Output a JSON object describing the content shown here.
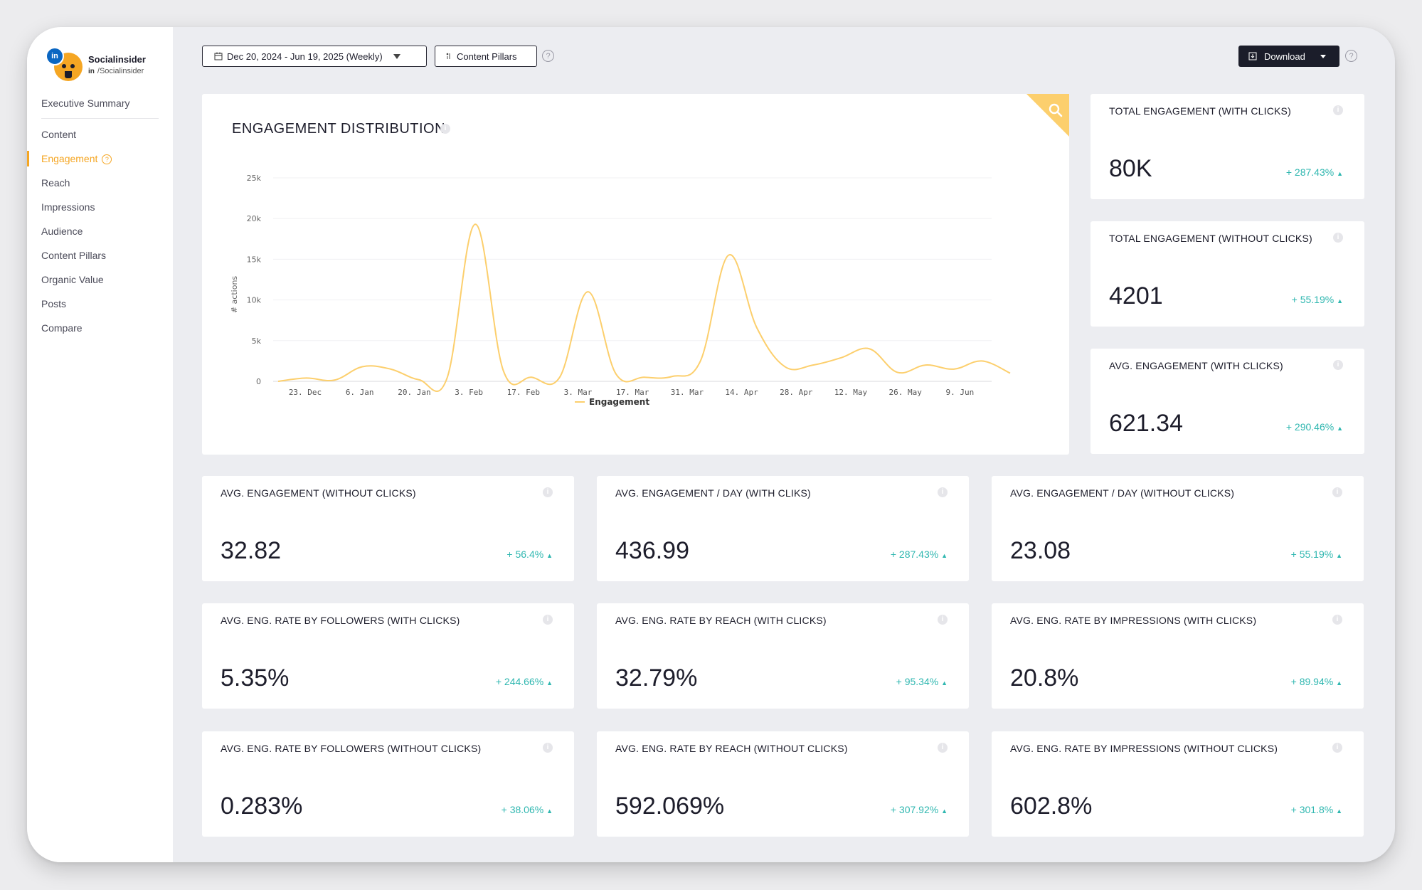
{
  "profile": {
    "name": "Socialinsider",
    "handle": "/Socialinsider",
    "network_badge": "in"
  },
  "sidebar": {
    "items": [
      {
        "label": "Executive Summary"
      },
      {
        "label": "Content"
      },
      {
        "label": "Engagement"
      },
      {
        "label": "Reach"
      },
      {
        "label": "Impressions"
      },
      {
        "label": "Audience"
      },
      {
        "label": "Content Pillars"
      },
      {
        "label": "Organic Value"
      },
      {
        "label": "Posts"
      },
      {
        "label": "Compare"
      }
    ],
    "active": "Engagement"
  },
  "toolbar": {
    "date_range": "Dec 20, 2024 - Jun 19, 2025 (Weekly)",
    "content_pillars_label": "Content Pillars",
    "download_label": "Download"
  },
  "chart_data": {
    "type": "line",
    "title": "ENGAGEMENT DISTRIBUTION",
    "ylabel": "# actions",
    "xlabel": "",
    "ylim": [
      0,
      25000
    ],
    "yticks": [
      "25k",
      "20k",
      "15k",
      "10k",
      "5k",
      "0"
    ],
    "xticks": [
      "23. Dec",
      "6. Jan",
      "20. Jan",
      "3. Feb",
      "17. Feb",
      "3. Mar",
      "17. Mar",
      "31. Mar",
      "14. Apr",
      "28. Apr",
      "12. May",
      "26. May",
      "9. Jun"
    ],
    "legend": "Engagement",
    "series": [
      {
        "name": "Engagement",
        "color": "#fccf6d",
        "values": [
          0,
          400,
          150,
          1800,
          1500,
          200,
          400,
          19300,
          1300,
          500,
          500,
          11000,
          900,
          500,
          600,
          2500,
          15500,
          6600,
          1800,
          2000,
          2900,
          4000,
          1100,
          2000,
          1500,
          2500,
          1000
        ]
      }
    ]
  },
  "metrics": [
    {
      "title": "TOTAL ENGAGEMENT (WITH CLICKS)",
      "value": "80K",
      "change": "+ 287.43%"
    },
    {
      "title": "TOTAL ENGAGEMENT (WITHOUT CLICKS)",
      "value": "4201",
      "change": "+ 55.19%"
    },
    {
      "title": "AVG. ENGAGEMENT (WITH CLICKS)",
      "value": "621.34",
      "change": "+ 290.46%"
    },
    {
      "title": "AVG. ENGAGEMENT (WITHOUT CLICKS)",
      "value": "32.82",
      "change": "+ 56.4%"
    },
    {
      "title": "AVG. ENGAGEMENT / DAY (WITH CLIKS)",
      "value": "436.99",
      "change": "+ 287.43%"
    },
    {
      "title": "AVG. ENGAGEMENT / DAY (WITHOUT CLICKS)",
      "value": "23.08",
      "change": "+ 55.19%"
    },
    {
      "title": "AVG. ENG. RATE BY FOLLOWERS (WITH CLICKS)",
      "value": "5.35%",
      "change": "+ 244.66%"
    },
    {
      "title": "AVG. ENG. RATE BY REACH (WITH CLICKS)",
      "value": "32.79%",
      "change": "+ 95.34%"
    },
    {
      "title": "AVG. ENG. RATE BY IMPRESSIONS (WITH CLICKS)",
      "value": "20.8%",
      "change": "+ 89.94%"
    },
    {
      "title": "AVG. ENG. RATE BY FOLLOWERS (WITHOUT CLICKS)",
      "value": "0.283%",
      "change": "+ 38.06%"
    },
    {
      "title": "AVG. ENG. RATE BY REACH (WITHOUT CLICKS)",
      "value": "592.069%",
      "change": "+ 307.92%"
    },
    {
      "title": "AVG. ENG. RATE BY IMPRESSIONS (WITHOUT CLICKS)",
      "value": "602.8%",
      "change": "+ 301.8%"
    }
  ],
  "colors": {
    "accent": "#f5a623",
    "positive": "#2fb7b0",
    "dark": "#1b1d2a",
    "series": "#fccf6d"
  }
}
